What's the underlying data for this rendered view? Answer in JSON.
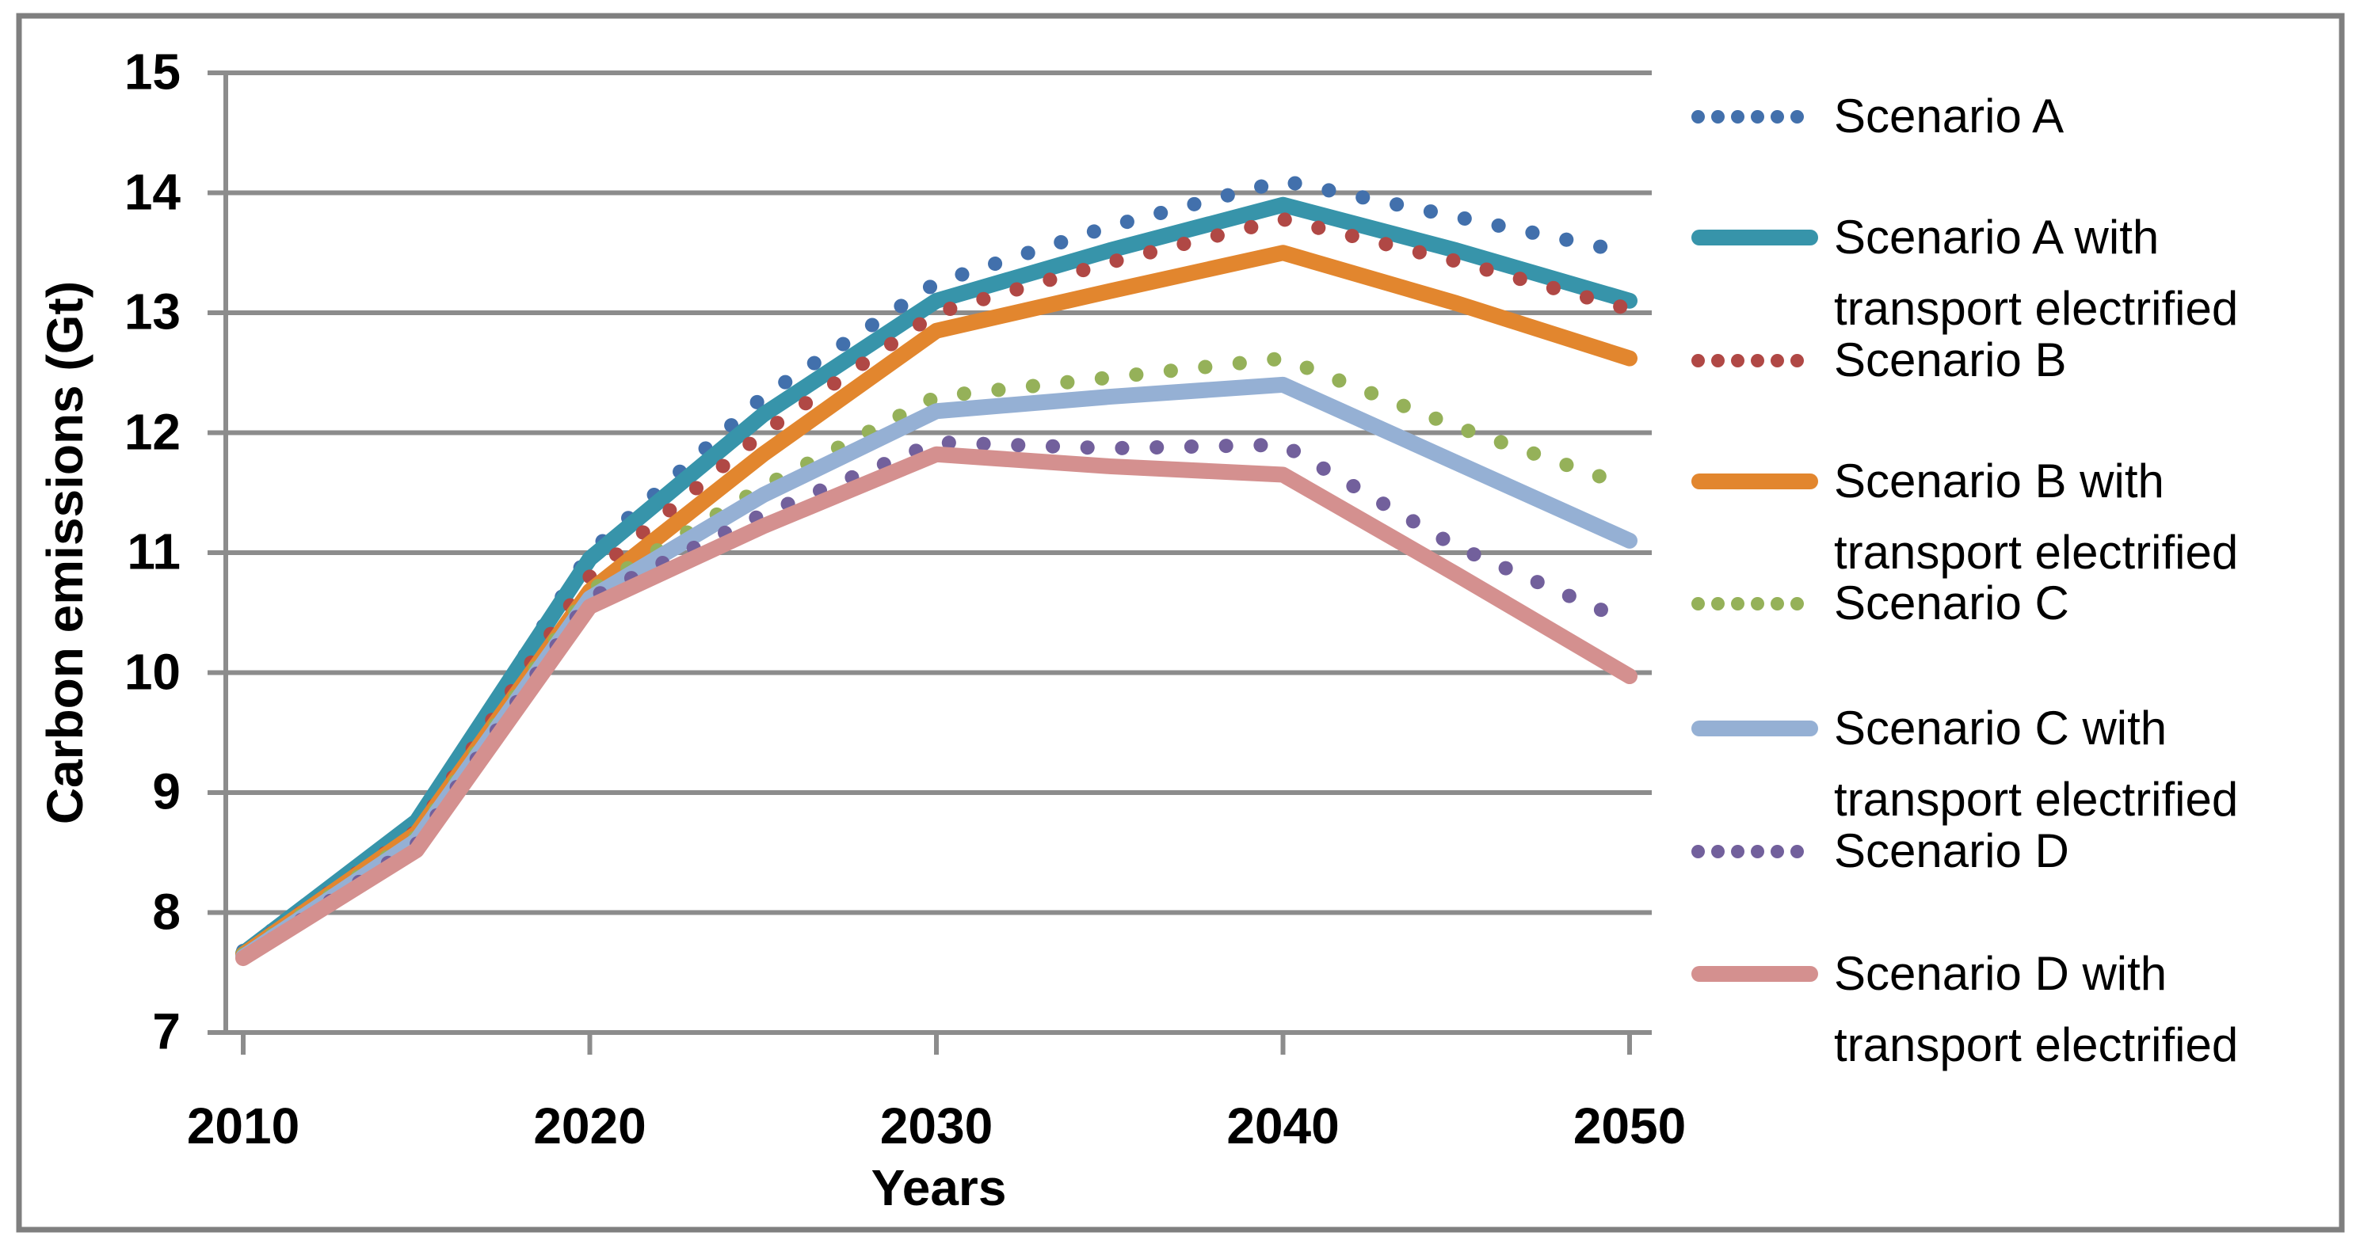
{
  "chart_data": {
    "type": "line",
    "title": "",
    "xlabel": "Years",
    "ylabel": "Carbon emissions (Gt)",
    "xlim": [
      2010,
      2050
    ],
    "ylim": [
      7,
      15
    ],
    "x_ticks": [
      2010,
      2020,
      2030,
      2040,
      2050
    ],
    "y_ticks": [
      15,
      14,
      13,
      12,
      11,
      10,
      9,
      8,
      7
    ],
    "grid": true,
    "legend_position": "right",
    "x": [
      2010,
      2015,
      2020,
      2025,
      2030,
      2035,
      2040,
      2045,
      2050
    ],
    "series": [
      {
        "name": "Scenario A",
        "line_style": "dotted",
        "color": "#4270AC",
        "values": [
          7.68,
          8.72,
          11.0,
          12.3,
          13.25,
          13.72,
          14.1,
          13.8,
          13.5
        ]
      },
      {
        "name": "Scenario A with transport electrified",
        "line_style": "solid",
        "color": "#3794AA",
        "values": [
          7.66,
          8.76,
          10.95,
          12.15,
          13.1,
          13.52,
          13.9,
          13.52,
          13.1
        ]
      },
      {
        "name": "Scenario B",
        "line_style": "dotted",
        "color": "#B04845",
        "values": [
          7.66,
          8.68,
          10.8,
          12.0,
          13.0,
          13.42,
          13.78,
          13.43,
          13.03
        ]
      },
      {
        "name": "Scenario B with transport electrified",
        "line_style": "solid",
        "color": "#E2862E",
        "values": [
          7.65,
          8.66,
          10.68,
          11.82,
          12.85,
          13.18,
          13.5,
          13.08,
          12.62
        ]
      },
      {
        "name": "Scenario C",
        "line_style": "dotted",
        "color": "#95B159",
        "values": [
          7.65,
          8.63,
          10.68,
          11.55,
          12.3,
          12.46,
          12.62,
          12.05,
          11.55
        ]
      },
      {
        "name": "Scenario C with transport electrified",
        "line_style": "solid",
        "color": "#95B0D4",
        "values": [
          7.63,
          8.6,
          10.62,
          11.48,
          12.18,
          12.3,
          12.4,
          11.75,
          11.1
        ]
      },
      {
        "name": "Scenario D",
        "line_style": "dotted",
        "color": "#72609C",
        "values": [
          7.62,
          8.57,
          10.62,
          11.32,
          11.92,
          11.87,
          11.9,
          11.05,
          10.42
        ]
      },
      {
        "name": "Scenario D with transport electrified",
        "line_style": "solid",
        "color": "#D4908F",
        "values": [
          7.62,
          8.52,
          10.55,
          11.22,
          11.82,
          11.72,
          11.65,
          10.82,
          9.97
        ]
      }
    ]
  },
  "style": {
    "gridline_color": "#8C8C8C",
    "axis_color": "#8C8C8C",
    "border_color": "#7F7F7F",
    "background_color": "#FFFFFF",
    "text_color": "#000000"
  }
}
